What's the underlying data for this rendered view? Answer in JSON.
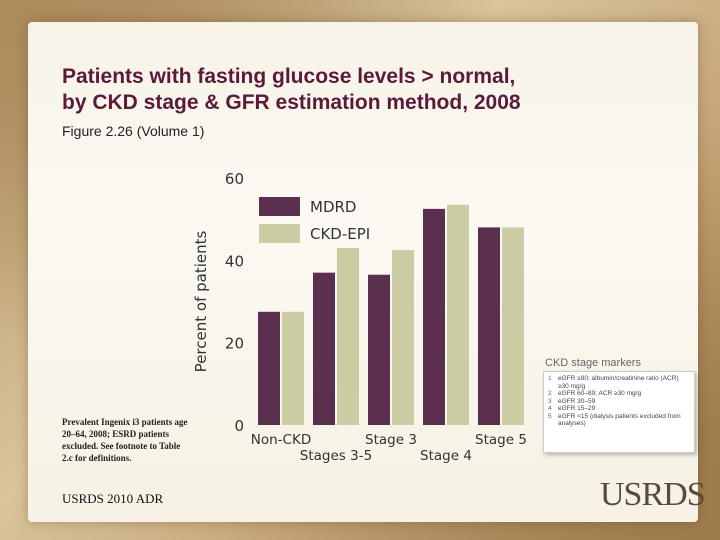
{
  "slide": {
    "title_line1": "Patients with fasting glucose levels > normal,",
    "title_line2": "by CKD stage & GFR estimation method, 2008",
    "subtitle": "Figure 2.26 (Volume 1)",
    "footnote": "Prevalent Ingenix i3 patients age 20–64, 2008; ESRD patients excluded. See footnote to Table 2.c for definitions.",
    "source": "USRDS 2010 ADR",
    "logo": "USRDS"
  },
  "chart_data": {
    "type": "bar",
    "categories": [
      "Non-CKD",
      "Stages 3-5",
      "Stage 3",
      "Stage 4",
      "Stage 5"
    ],
    "series": [
      {
        "name": "MDRD",
        "color": "#5b2f4e",
        "values": [
          27.5,
          37,
          36.5,
          52.5,
          48
        ]
      },
      {
        "name": "CKD-EPI",
        "color": "#cccca4",
        "values": [
          27.5,
          43,
          42.5,
          53.5,
          48
        ]
      }
    ],
    "ylabel": "Percent of patients",
    "xlabel": "",
    "ylim": [
      0,
      60
    ],
    "yticks": [
      0,
      20,
      40,
      60
    ],
    "grid": false,
    "legend": "top-left"
  },
  "ckd_markers": {
    "title": "CKD stage markers",
    "items": [
      {
        "num": "1",
        "text": "eGFR ≥90; albumin/creatinine ratio (ACR) ≥30 mg/g"
      },
      {
        "num": "2",
        "text": "eGFR 60–89; ACR ≥30 mg/g"
      },
      {
        "num": "3",
        "text": "eGFR 30–59"
      },
      {
        "num": "4",
        "text": "eGFR 15–29"
      },
      {
        "num": "5",
        "text": "eGFR <15 (dialysis patients excluded from analyses)"
      }
    ]
  }
}
